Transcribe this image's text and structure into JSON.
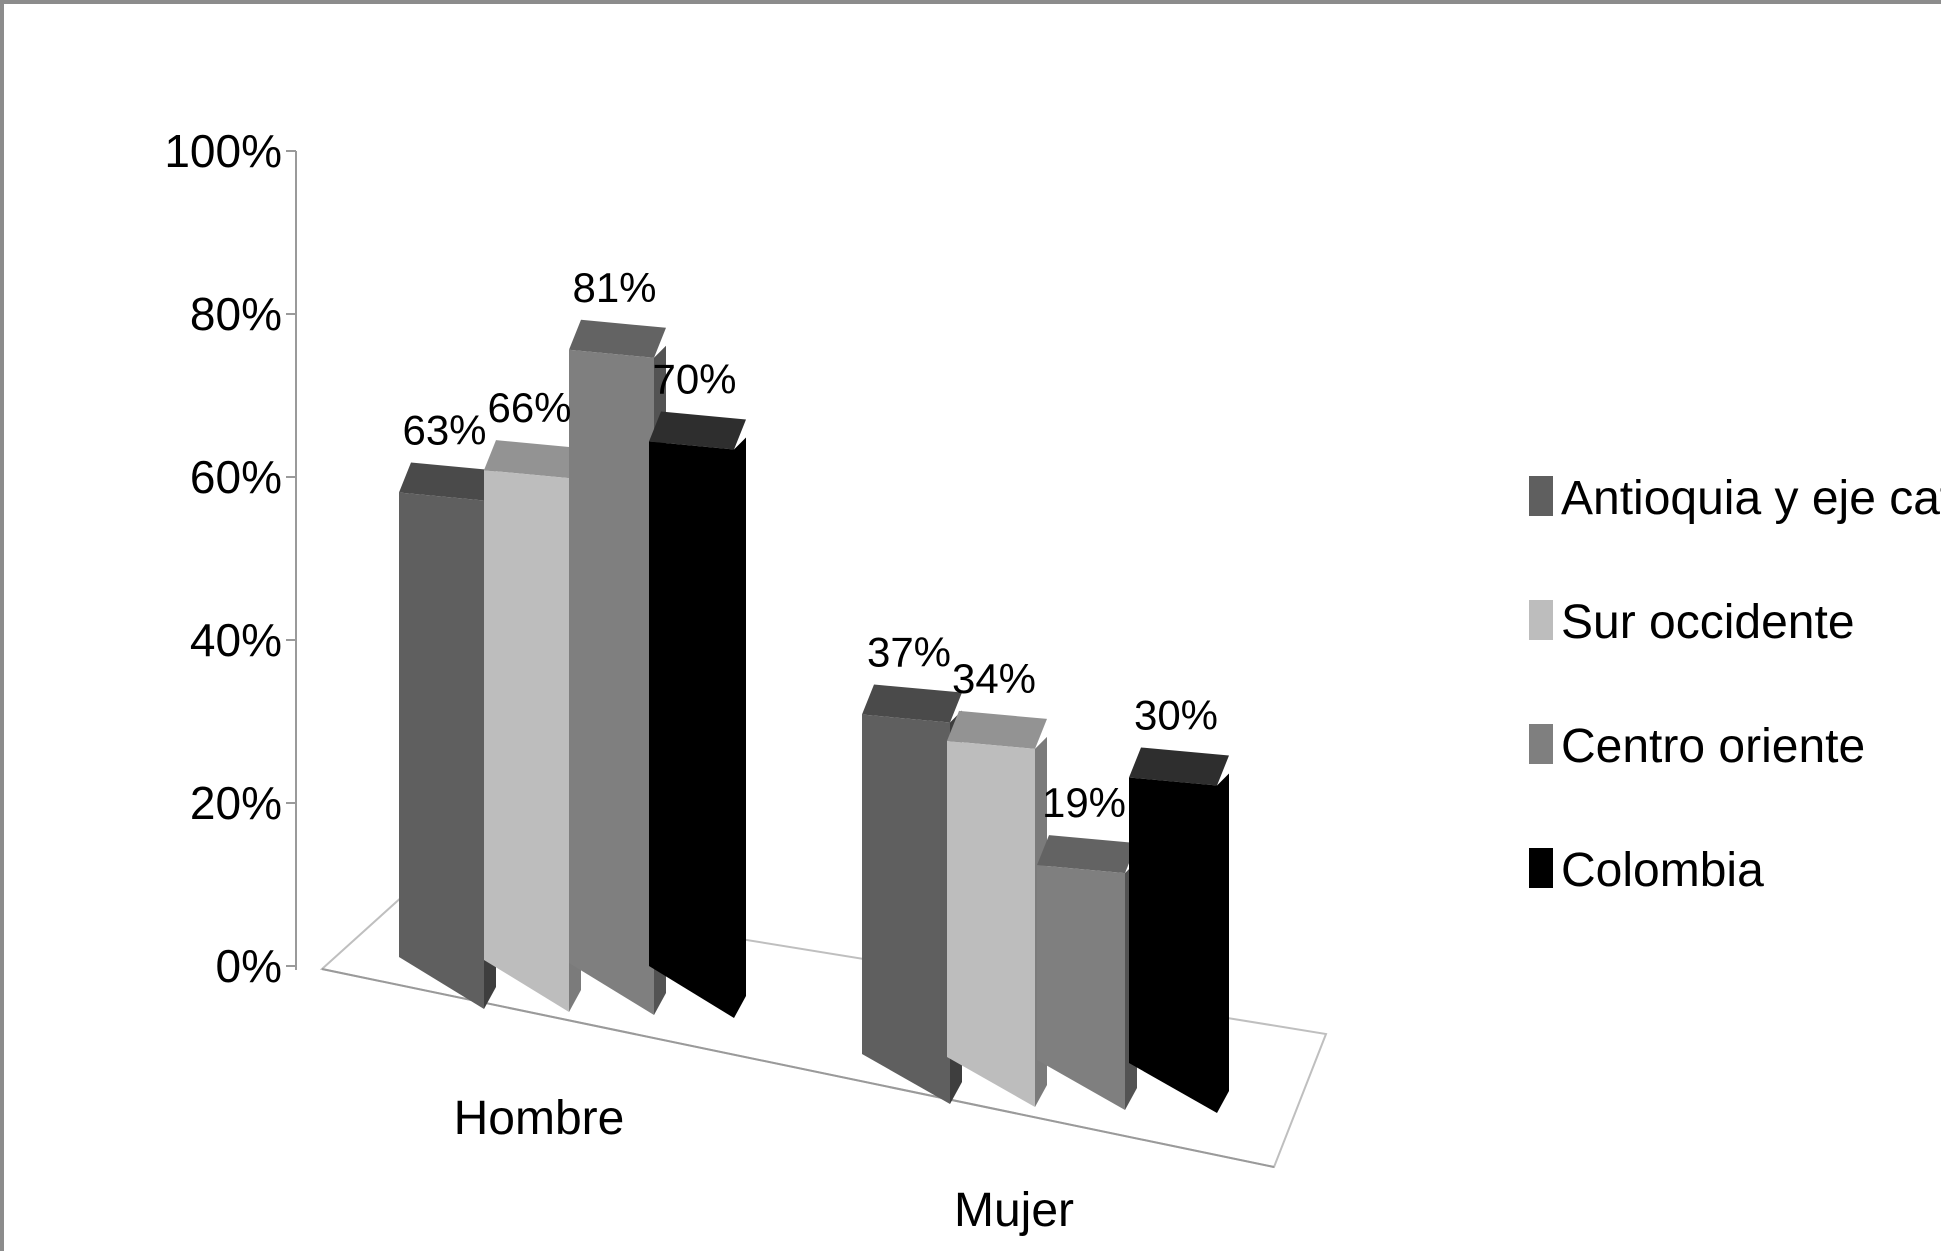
{
  "chart_data": {
    "type": "bar",
    "style": "3d-clustered-column",
    "title": "",
    "xlabel": "",
    "ylabel": "",
    "ylim": [
      0,
      100
    ],
    "y_ticks": [
      "0%",
      "20%",
      "40%",
      "60%",
      "80%",
      "100%"
    ],
    "categories": [
      "Hombre",
      "Mujer"
    ],
    "series": [
      {
        "name": "Antioquia y eje cafetero",
        "legend_text": "Antioquia y eje cafete",
        "color": "#5f5f5f",
        "values": [
          63,
          37
        ],
        "labels": [
          "63%",
          "37%"
        ]
      },
      {
        "name": "Sur occidente",
        "legend_text": "Sur occidente",
        "color": "#bdbdbd",
        "values": [
          66,
          34
        ],
        "labels": [
          "66%",
          "34%"
        ]
      },
      {
        "name": "Centro oriente",
        "legend_text": "Centro oriente",
        "color": "#7f7f7f",
        "values": [
          81,
          19
        ],
        "labels": [
          "81%",
          "19%"
        ]
      },
      {
        "name": "Colombia",
        "legend_text": "Colombia",
        "color": "#000000",
        "values": [
          70,
          30
        ],
        "labels": [
          "70%",
          "30%"
        ]
      }
    ],
    "legend_position": "right",
    "grid": false
  }
}
